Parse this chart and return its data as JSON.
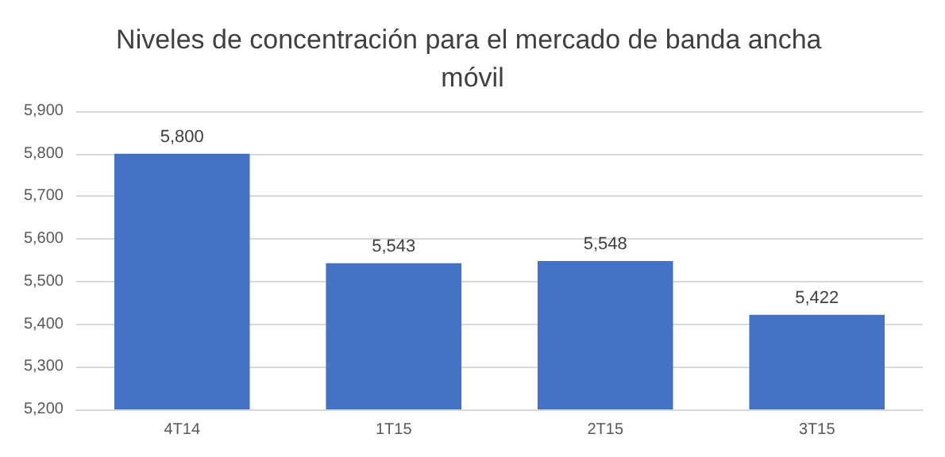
{
  "chart_data": {
    "type": "bar",
    "title": "Niveles de concentración para el mercado de banda ancha móvil",
    "categories": [
      "4T14",
      "1T15",
      "2T15",
      "3T15"
    ],
    "values": [
      5800,
      5543,
      5548,
      5422
    ],
    "color": "#4472c4",
    "ylim": [
      5200,
      5900
    ],
    "yticks": [
      {
        "value": 5200,
        "label": "5,200"
      },
      {
        "value": 5300,
        "label": "5,300"
      },
      {
        "value": 5400,
        "label": "5,400"
      },
      {
        "value": 5500,
        "label": "5,500"
      },
      {
        "value": 5600,
        "label": "5,600"
      },
      {
        "value": 5700,
        "label": "5,700"
      },
      {
        "value": 5800,
        "label": "5,800"
      },
      {
        "value": 5900,
        "label": "5,900"
      }
    ],
    "value_labels": [
      "5,800",
      "5,543",
      "5,548",
      "5,422"
    ],
    "grid": "y"
  }
}
